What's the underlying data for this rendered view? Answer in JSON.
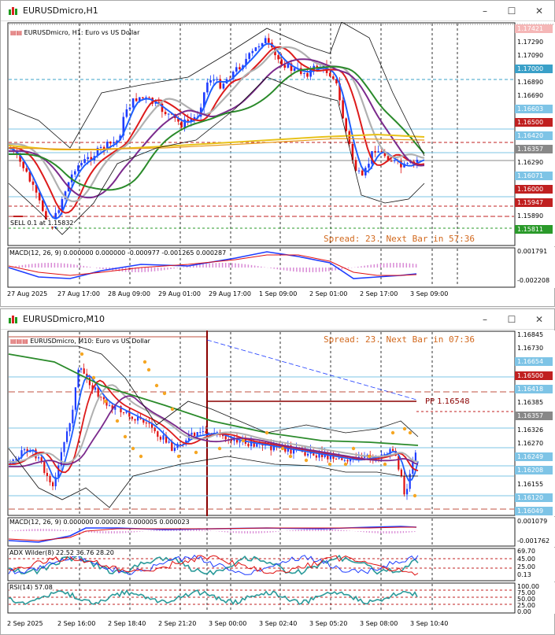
{
  "windows": [
    {
      "title": "EURUSDmicro,H1",
      "symbol_line": "EURUSDmicro, H1:  Euro vs US Dollar",
      "overlay_text": "Spread: 23. Next Bar in 57:36",
      "sell_label": "SELL 0.1 at 1.15832",
      "price_ticks": [
        "1.17421",
        "1.17290",
        "1.17090",
        "1.17000",
        "1.16890",
        "1.16690",
        "1.16603",
        "1.16500",
        "1.16420",
        "1.16357",
        "1.16290",
        "1.16071",
        "1.16000",
        "1.15947",
        "1.15890",
        "1.15811"
      ],
      "time_ticks": [
        "27 Aug 2025",
        "27 Aug 17:00",
        "28 Aug 09:00",
        "29 Aug 01:00",
        "29 Aug 17:00",
        "1 Sep 09:00",
        "2 Sep 01:00",
        "2 Sep 17:00",
        "3 Sep 09:00"
      ],
      "macd": {
        "label": "MACD(12, 26, 9) 0.000000 0.000000 -0.000977 -0.001265 0.000287",
        "ticks": [
          "0.001791",
          "-0.002208"
        ]
      }
    },
    {
      "title": "EURUSDmicro,M10",
      "symbol_line": "EURUSDmicro, M10:  Euro vs US Dollar",
      "overlay_text": "Spread: 23. Next Bar in 07:36",
      "pp_label": "PP 1.16548",
      "price_ticks": [
        "1.16845",
        "1.16730",
        "1.16654",
        "1.16500",
        "1.16418",
        "1.16385",
        "1.16357",
        "1.16326",
        "1.16270",
        "1.16249",
        "1.16208",
        "1.16155",
        "1.16120",
        "1.16049"
      ],
      "time_ticks": [
        "2 Sep 2025",
        "2 Sep 16:00",
        "2 Sep 18:40",
        "2 Sep 21:20",
        "3 Sep 00:00",
        "3 Sep 02:40",
        "3 Sep 05:20",
        "3 Sep 08:00",
        "3 Sep 10:40"
      ],
      "macd": {
        "label": "MACD(12, 26, 9) 0.000000 0.000028 0.000005 0.000023",
        "ticks": [
          "0.001079",
          "-0.001762"
        ]
      },
      "adx": {
        "label": "ADX Wilder(8) 22.52 36.76 28.20",
        "ticks": [
          "69.70",
          "45.00",
          "25.00",
          "0.13"
        ]
      },
      "rsi": {
        "label": "RSI(14) 57.08",
        "ticks": [
          "100.00",
          "75.00",
          "50.00",
          "25.00",
          "0.00"
        ]
      }
    }
  ],
  "colors": {
    "bull": "#1e3cff",
    "bear": "#e01010",
    "ma_green": "#2a8a2a",
    "ma_purple": "#7b2a8c",
    "ma_gold": "#e8c21a",
    "ma_gray": "#b0b0b0",
    "spread": "#d2691e",
    "psar": "#f5a623"
  }
}
